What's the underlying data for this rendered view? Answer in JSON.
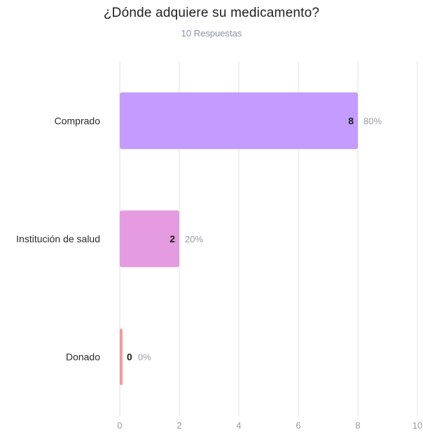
{
  "header": {
    "title": "¿Dónde adquiere su medicamento?",
    "subtitle": "10 Respuestas"
  },
  "chart_data": {
    "type": "bar",
    "orientation": "horizontal",
    "title": "¿Dónde adquiere su medicamento?",
    "subtitle": "10 Respuestas",
    "xlabel": "",
    "ylabel": "",
    "categories": [
      "Comprado",
      "Institución de salud",
      "Donado"
    ],
    "values": [
      8,
      2,
      0
    ],
    "percent_labels": [
      "80%",
      "20%",
      "0%"
    ],
    "colors": [
      "#c49cff",
      "#e49be0",
      "#f59a9a"
    ],
    "xlim": [
      0,
      10
    ],
    "xticks": [
      0,
      2,
      4,
      6,
      8,
      10
    ],
    "grid": true,
    "legend": "none"
  }
}
